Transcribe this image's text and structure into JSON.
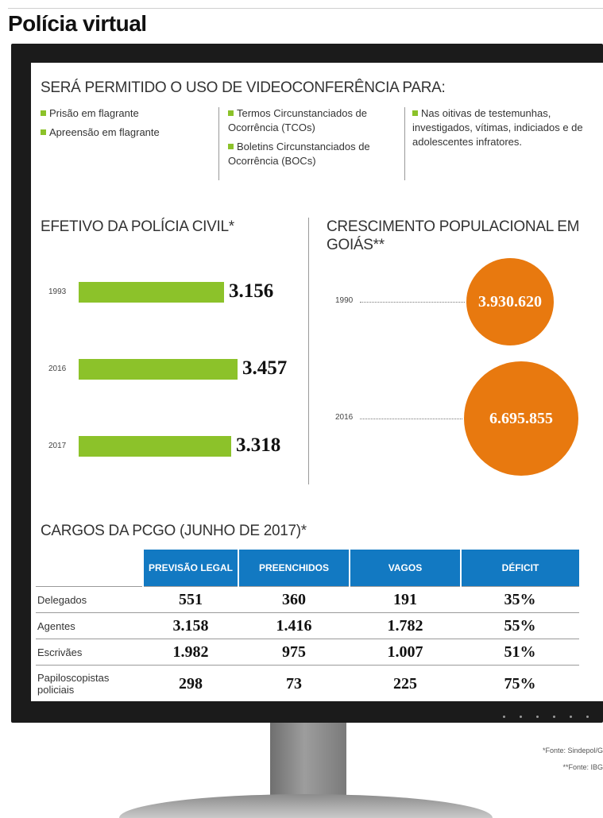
{
  "page_title": "Polícia virtual",
  "video_section": {
    "title": "SERÁ PERMITIDO O USO DE VIDEOCONFERÊNCIA PARA:",
    "col1": [
      "Prisão em flagrante",
      "Apreensão em flagrante"
    ],
    "col2": [
      "Termos Circunstanciados de Ocorrência (TCOs)",
      "Boletins Circunstanciados de Ocorrência (BOCs)"
    ],
    "col3": [
      "Nas oitivas de testemunhas, investigados, vítimas, indiciados e de adolescentes infratores."
    ]
  },
  "colors": {
    "bar": "#8cc22a",
    "circle": "#e8790f",
    "table_header": "#1279c2"
  },
  "chart_data": [
    {
      "type": "bar",
      "title": "EFETIVO DA POLÍCIA CIVIL*",
      "categories": [
        "1993",
        "2016",
        "2017"
      ],
      "values": [
        3156,
        3457,
        3318
      ],
      "value_labels": [
        "3.156",
        "3.457",
        "3.318"
      ]
    },
    {
      "type": "bubble",
      "title": "CRESCIMENTO POPULACIONAL EM GOIÁS**",
      "categories": [
        "1990",
        "2016"
      ],
      "values": [
        3930620,
        6695855
      ],
      "value_labels": [
        "3.930.620",
        "6.695.855"
      ]
    },
    {
      "type": "table",
      "title": "CARGOS DA PCGO (JUNHO DE 2017)*",
      "columns": [
        "PREVISÃO LEGAL",
        "PREENCHIDOS",
        "VAGOS",
        "DÉFICIT"
      ],
      "rows": [
        {
          "label": "Delegados",
          "values": [
            "551",
            "360",
            "191",
            "35%"
          ]
        },
        {
          "label": "Agentes",
          "values": [
            "3.158",
            "1.416",
            "1.782",
            "55%"
          ]
        },
        {
          "label": "Escrivães",
          "values": [
            "1.982",
            "975",
            "1.007",
            "51%"
          ]
        },
        {
          "label": "Papiloscopistas policiais",
          "values": [
            "298",
            "73",
            "225",
            "75%"
          ]
        }
      ]
    }
  ],
  "footnotes": [
    "*Fonte: Sindepol/G",
    "**Fonte: IBG"
  ]
}
